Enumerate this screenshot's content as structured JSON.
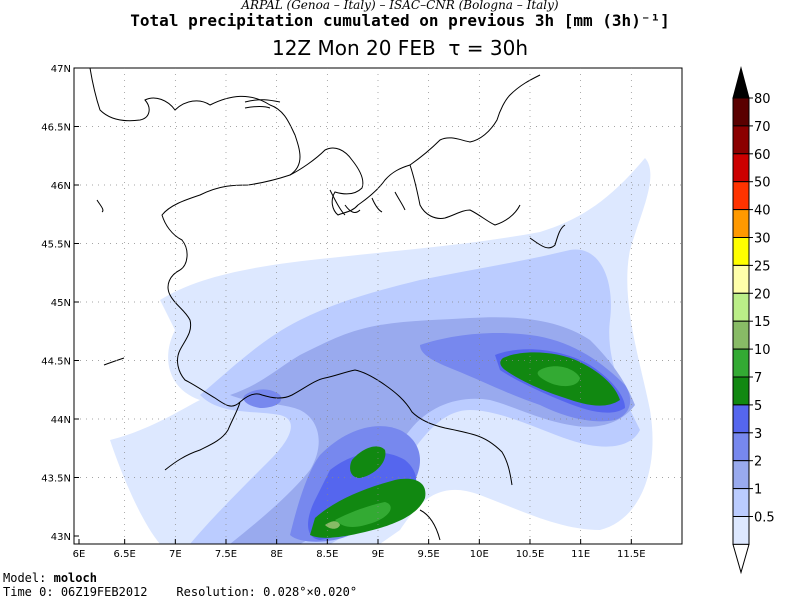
{
  "header": {
    "credit": "ARPAL (Genoa – Italy)  –  ISAC–CNR (Bologna – Italy)",
    "title": "Total precipitation cumulated on previous 3h [mm (3h)⁻¹]",
    "date": "12Z Mon 20 FEB",
    "tau": "τ = 30h"
  },
  "map": {
    "lat_labels": [
      "47N",
      "46.5N",
      "46N",
      "45.5N",
      "45N",
      "44.5N",
      "44N",
      "43.5N",
      "43N"
    ],
    "lon_labels": [
      "6E",
      "6.5E",
      "7E",
      "7.5E",
      "8E",
      "8.5E",
      "9E",
      "9.5E",
      "10E",
      "10.5E",
      "11E",
      "11.5E"
    ],
    "lat_range": [
      43,
      47
    ],
    "lon_range": [
      6,
      12
    ]
  },
  "colorbar": {
    "levels": [
      "80",
      "70",
      "60",
      "50",
      "40",
      "30",
      "25",
      "20",
      "15",
      "10",
      "7",
      "5",
      "3",
      "2",
      "1",
      "0.5"
    ],
    "colors": [
      "#5a0000",
      "#8b0000",
      "#cc0000",
      "#ff3300",
      "#ff9900",
      "#ffff00",
      "#ffffaa",
      "#bbee88",
      "#88bb66",
      "#33aa33",
      "#118811",
      "#5566ee",
      "#7788ee",
      "#99aaee",
      "#bbccff",
      "#dde8ff"
    ],
    "top_color": "#000000",
    "bottom_color": "#ffffff"
  },
  "footer": {
    "model_label": "Model:",
    "model_value": "moloch",
    "time_label": "Time 0:",
    "time_value": "06Z19FEB2012",
    "res_label": "Resolution:",
    "res_value": "0.028°×0.020°"
  }
}
